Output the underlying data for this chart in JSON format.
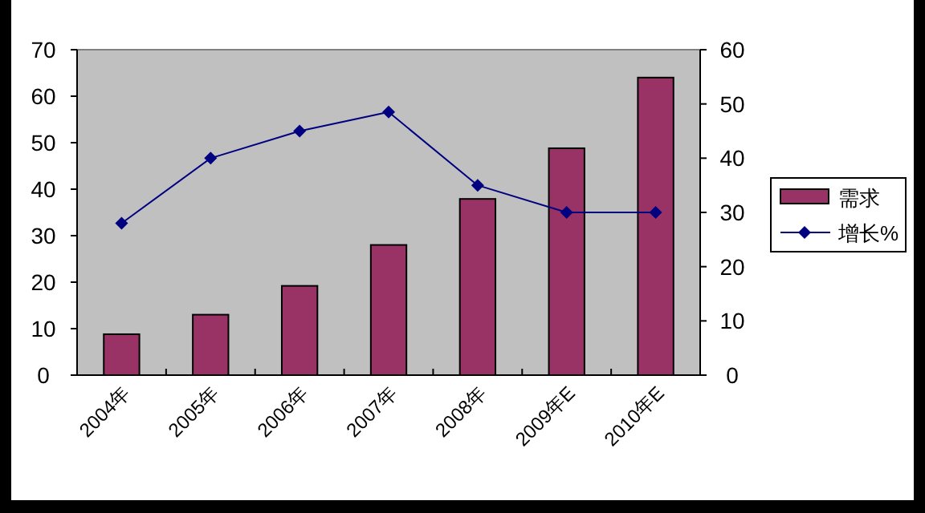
{
  "chart_data": {
    "type": "bar",
    "categories": [
      "2004年",
      "2005年",
      "2006年",
      "2007年",
      "2008年",
      "2009年E",
      "2010年E"
    ],
    "series": [
      {
        "name": "需求",
        "color": "#993366",
        "values": [
          8.8,
          13,
          19.2,
          28,
          37.9,
          48.8,
          64
        ]
      },
      {
        "name": "增长%",
        "type": "line",
        "axis": "y2",
        "color": "#000080",
        "marker": "diamond",
        "values": [
          28,
          40,
          45,
          48.5,
          35,
          30,
          30
        ]
      }
    ],
    "ylim": [
      0,
      70
    ],
    "yticks": [
      0,
      10,
      20,
      30,
      40,
      50,
      60,
      70
    ],
    "y2lim": [
      0,
      60
    ],
    "y2ticks": [
      0,
      10,
      20,
      30,
      40,
      50,
      60
    ],
    "legend": "right",
    "grid": false
  }
}
